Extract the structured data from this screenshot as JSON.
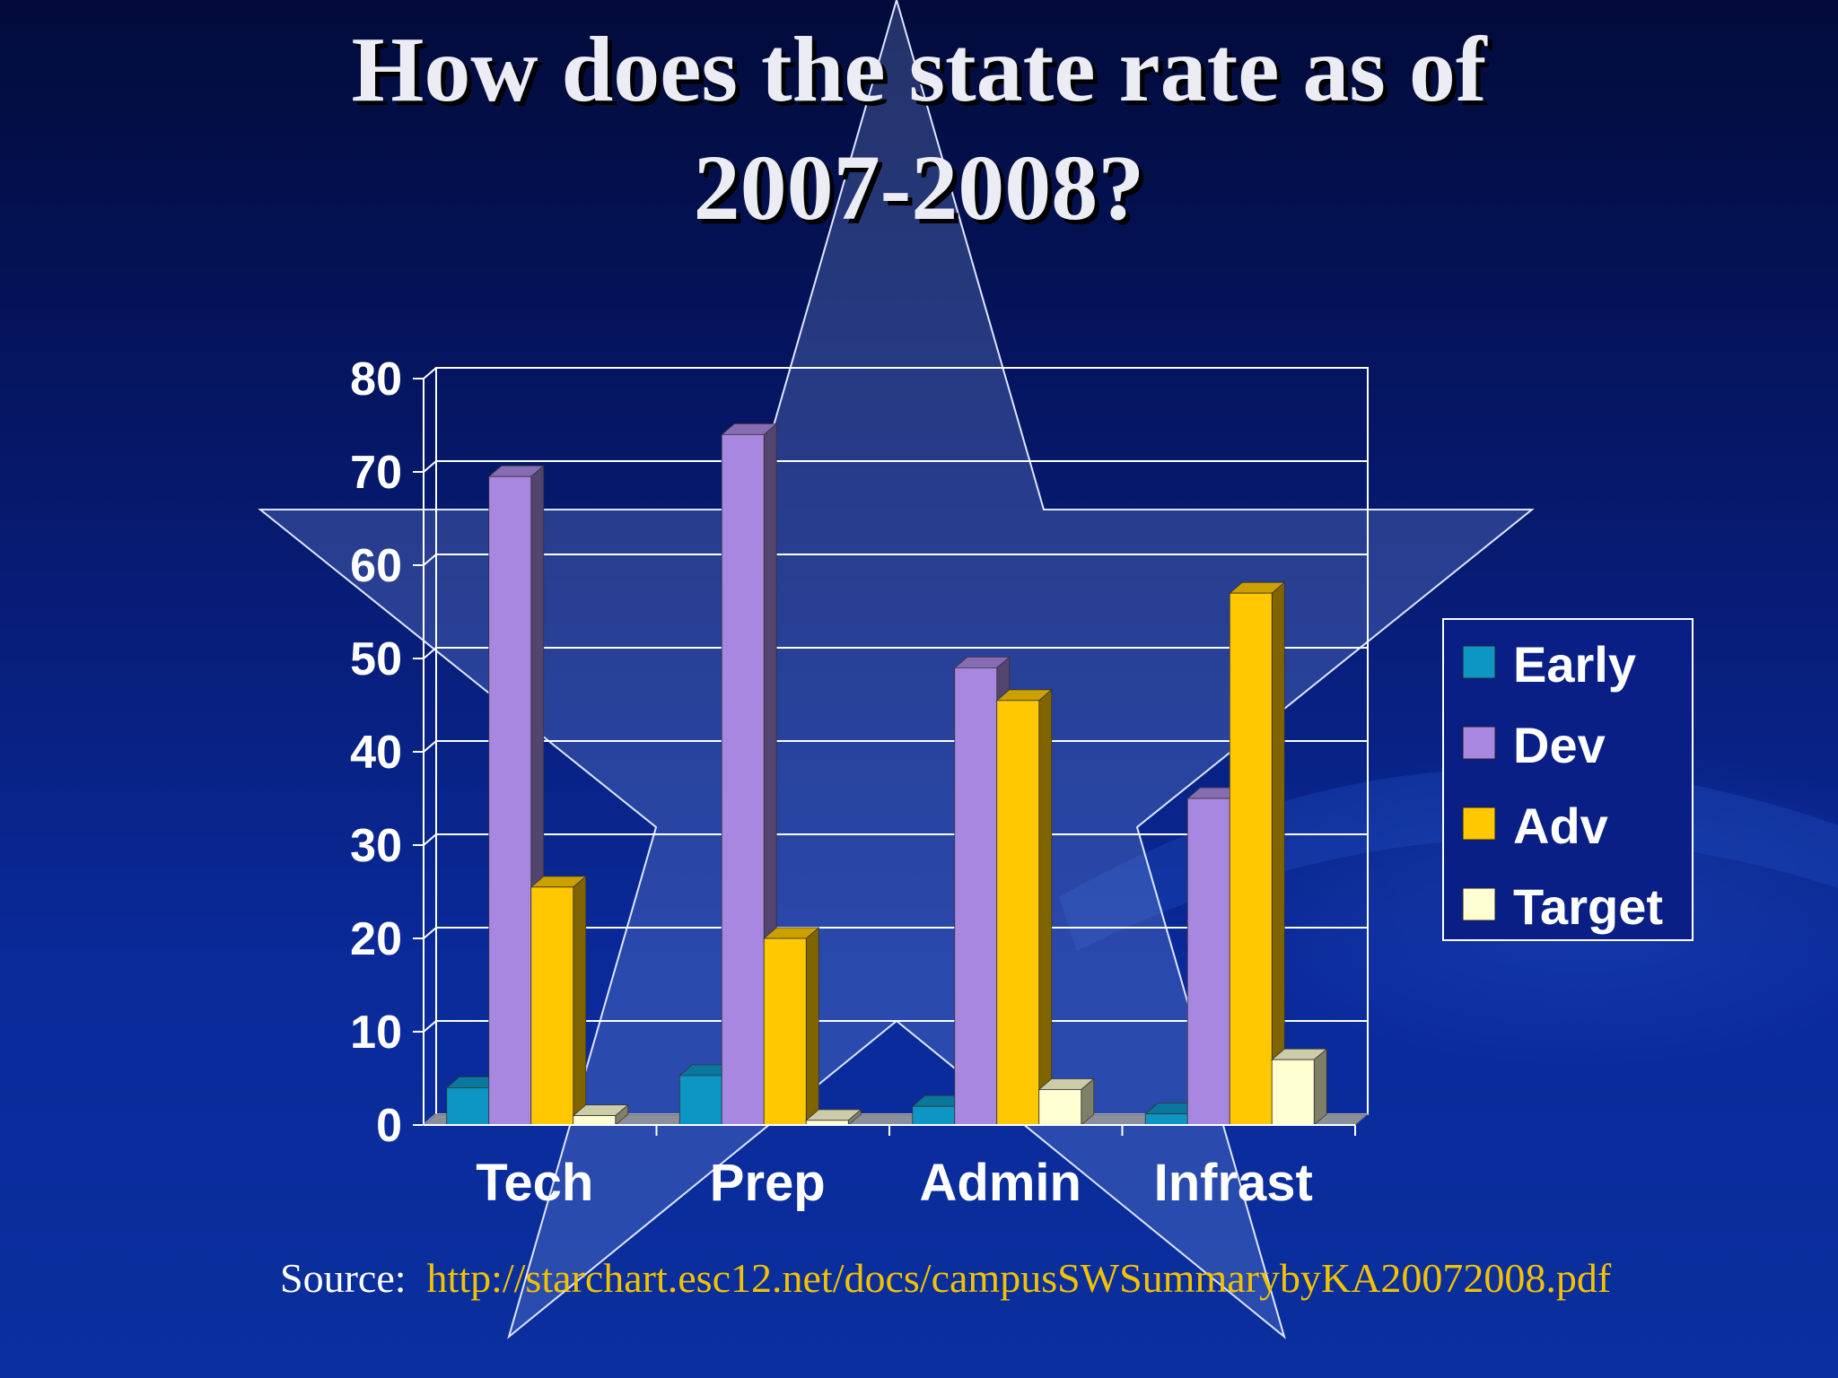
{
  "slide": {
    "title_line1": "How does the state rate as of",
    "title_line2": "2007-2008?",
    "source_label": "Source:",
    "source_url": "http://starchart.esc12.net/docs/campusSWSummarybyKA20072008.pdf"
  },
  "colors": {
    "Early": "#0d95c4",
    "Dev": "#a887e0",
    "Adv": "#ffc800",
    "Target": "#ffffd2"
  },
  "chart_data": {
    "type": "bar",
    "categories": [
      "Tech",
      "Prep",
      "Admin",
      "Infrast"
    ],
    "series": [
      {
        "name": "Early",
        "values": [
          4,
          5.3,
          2,
          1.2
        ]
      },
      {
        "name": "Dev",
        "values": [
          69.5,
          74,
          49,
          35
        ]
      },
      {
        "name": "Adv",
        "values": [
          25.5,
          20,
          45.5,
          57
        ]
      },
      {
        "name": "Target",
        "values": [
          1,
          0.5,
          3.8,
          7
        ]
      }
    ],
    "yticks": [
      0,
      10,
      20,
      30,
      40,
      50,
      60,
      70,
      80
    ],
    "ylim": [
      0,
      80
    ],
    "grid": true,
    "legend_position": "right",
    "three_d": true
  }
}
